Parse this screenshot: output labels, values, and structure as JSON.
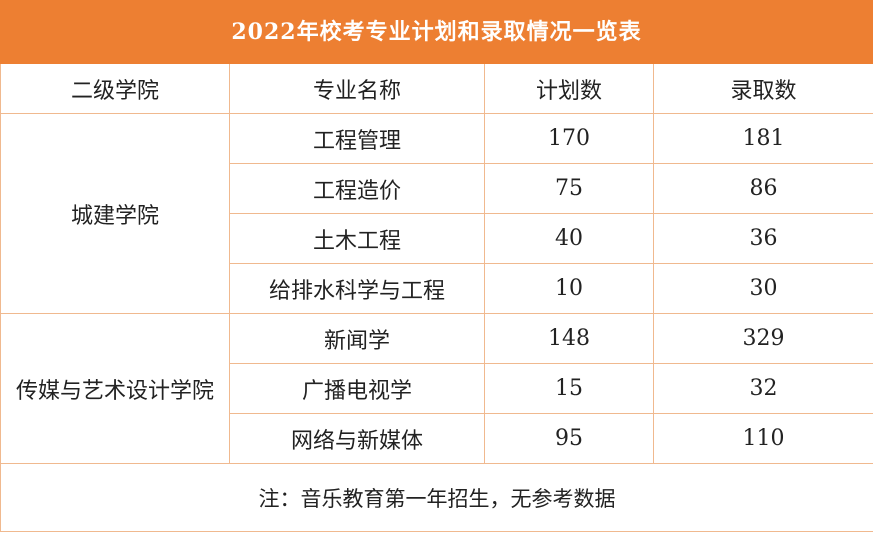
{
  "title": "2022年校考专业计划和录取情况一览表",
  "headers": [
    "二级学院",
    "专业名称",
    "计划数",
    "录取数"
  ],
  "groups": [
    {
      "college": "城建学院",
      "rows": [
        {
          "major": "工程管理",
          "plan": "170",
          "admit": "181"
        },
        {
          "major": "工程造价",
          "plan": "75",
          "admit": "86"
        },
        {
          "major": "土木工程",
          "plan": "40",
          "admit": "36"
        },
        {
          "major": "给排水科学与工程",
          "plan": "10",
          "admit": "30"
        }
      ]
    },
    {
      "college": "传媒与艺术设计学院",
      "rows": [
        {
          "major": "新闻学",
          "plan": "148",
          "admit": "329"
        },
        {
          "major": "广播电视学",
          "plan": "15",
          "admit": "32"
        },
        {
          "major": "网络与新媒体",
          "plan": "95",
          "admit": "110"
        }
      ]
    }
  ],
  "note": "注：音乐教育第一年招生，无参考数据",
  "colors": {
    "header_bg": "#ED7F32",
    "border": "#F0B98F"
  }
}
